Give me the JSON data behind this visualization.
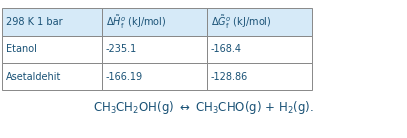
{
  "col0_header": "298 K 1 bar",
  "col1_header": "$\\Delta \\tilde{H}_{\\mathrm{f}}^{o}$ (kJ/mol)",
  "col2_header": "$\\Delta \\tilde{G}_{\\mathrm{f}}^{o}$ (kJ/mol)",
  "row1_label": "Etanol",
  "row2_label": "Asetaldehit",
  "row1_col1": "-235.1",
  "row1_col2": "-168.4",
  "row2_col1": "-166.19",
  "row2_col2": "-128.86",
  "equation": "CH$_3$CH$_2$OH(g) $\\leftrightarrow$ CH$_3$CHO(g) + H$_2$(g).",
  "text_color": "#1a5276",
  "header_bg": "#d6eaf8",
  "cell_bg": "#ffffff",
  "border_color": "#888888",
  "figsize": [
    4.07,
    1.38
  ],
  "dpi": 100
}
